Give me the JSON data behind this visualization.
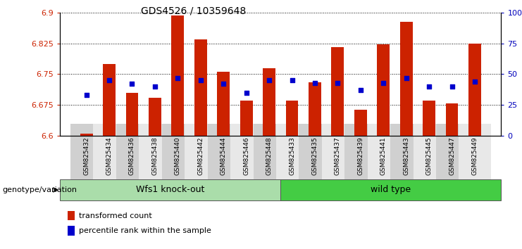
{
  "title": "GDS4526 / 10359648",
  "samples": [
    "GSM825432",
    "GSM825434",
    "GSM825436",
    "GSM825438",
    "GSM825440",
    "GSM825442",
    "GSM825444",
    "GSM825446",
    "GSM825448",
    "GSM825433",
    "GSM825435",
    "GSM825437",
    "GSM825439",
    "GSM825441",
    "GSM825443",
    "GSM825445",
    "GSM825447",
    "GSM825449"
  ],
  "transformed_count": [
    6.605,
    6.775,
    6.705,
    6.693,
    6.893,
    6.835,
    6.755,
    6.685,
    6.765,
    6.685,
    6.73,
    6.815,
    6.663,
    6.823,
    6.878,
    6.685,
    6.678,
    6.825
  ],
  "percentile_rank": [
    33,
    45,
    42,
    40,
    47,
    45,
    42,
    35,
    45,
    45,
    43,
    43,
    37,
    43,
    47,
    40,
    40,
    44
  ],
  "ymin": 6.6,
  "ymax": 6.9,
  "yticks_left": [
    6.6,
    6.675,
    6.75,
    6.825,
    6.9
  ],
  "yticks_right": [
    0,
    25,
    50,
    75,
    100
  ],
  "ytick_right_labels": [
    "0",
    "25",
    "50",
    "75",
    "100%"
  ],
  "group1_label": "Wfs1 knock-out",
  "group2_label": "wild type",
  "group1_count": 9,
  "group2_count": 9,
  "bar_color": "#cc2200",
  "dot_color": "#0000cc",
  "group1_bg": "#aaddaa",
  "group2_bg": "#44cc44",
  "xlabel_label": "genotype/variation",
  "legend_bar_label": "transformed count",
  "legend_dot_label": "percentile rank within the sample",
  "bar_width": 0.55,
  "left_color": "#cc2200",
  "right_color": "#0000bb",
  "tick_bg_even": "#d0d0d0",
  "tick_bg_odd": "#e8e8e8"
}
